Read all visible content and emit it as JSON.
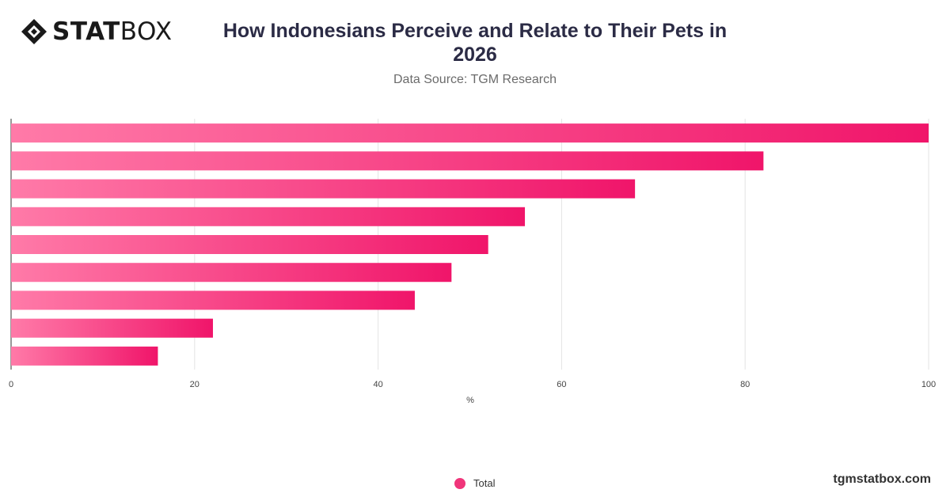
{
  "brand": {
    "logo_bold": "STAT",
    "logo_light": "BOX",
    "credit": "tgmstatbox.com"
  },
  "header": {
    "title": "How Indonesians Perceive and Relate to Their Pets in 2026",
    "subtitle": "Data Source: TGM Research"
  },
  "colors": {
    "bar_start": "#ff7aa8",
    "bar_end": "#f0156a",
    "legend": "#f0357a",
    "grid": "#e3e3e3",
    "axis": "#333333"
  },
  "chart_data": {
    "type": "bar",
    "orientation": "horizontal",
    "title": "How Indonesians Perceive and Relate to Their Pets in 2026",
    "xlabel": "%",
    "ylabel": "",
    "xlim": [
      0,
      100
    ],
    "xticks": [
      0,
      20,
      40,
      60,
      80,
      100
    ],
    "grid": true,
    "legend": "bottom-center",
    "series": [
      {
        "name": "Total",
        "values": [
          100,
          82,
          68,
          56,
          52,
          48,
          44,
          22,
          16
        ]
      }
    ]
  }
}
